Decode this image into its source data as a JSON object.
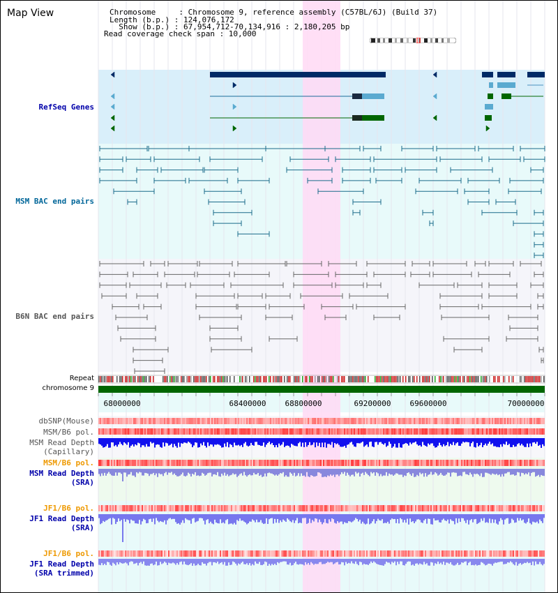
{
  "title": "Map View",
  "header": {
    "line1": "Chromosome     : Chromosome 9, reference assembly (C57BL/6J) (Build 37)",
    "line2": "Length (b.p.) : 124,076,172",
    "line3": "  Show (b.p.) : 67,954,712-70,134,916 : 2,180,205 bp",
    "line4": "Read coverage check span : 10,000"
  },
  "tracks": {
    "refseq": "RefSeq Genes",
    "msm_bac": "MSM BAC end pairs",
    "b6n_bac": "B6N BAC end pairs",
    "repeat": "Repeat",
    "chromosome": "chromosome 9",
    "dbsnp": "dbSNP(Mouse)",
    "msm_b6_pol": "MSM/B6 pol.",
    "msm_depth_cap_1": "MSM Read Depth",
    "msm_depth_cap_2": "(Capillary)",
    "msm_b6_pol2": "MSM/B6 pol.",
    "msm_depth_sra_1": "MSM Read Depth",
    "msm_depth_sra_2": "(SRA)",
    "jf1_b6_pol": "JF1/B6 pol.",
    "jf1_depth_sra_1": "JF1 Read Depth",
    "jf1_depth_sra_2": "(SRA)",
    "jf1_b6_pol2": "JF1/B6 pol.",
    "jf1_depth_trim_1": "JF1 Read Depth",
    "jf1_depth_trim_2": "(SRA trimmed)"
  },
  "axis": {
    "ticks": [
      "68000000",
      "68400000",
      "68800000",
      "69200000",
      "69600000",
      "70000000"
    ]
  },
  "colors": {
    "refseq_label": "#0000aa",
    "msm_label": "#006699",
    "b6n_label": "#555555",
    "pol_orange": "#ee9900",
    "depth_blue": "#0000aa",
    "highlight": "#ffd9f5",
    "chrom_green": "#006600"
  }
}
